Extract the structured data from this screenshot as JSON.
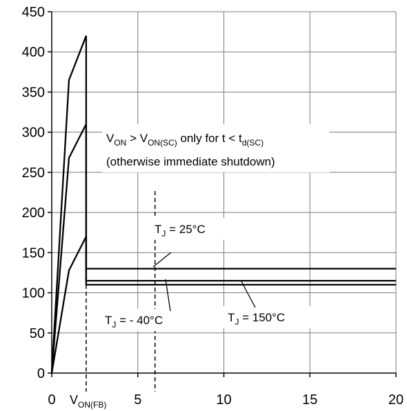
{
  "chart_data": {
    "type": "line",
    "title": "",
    "xlabel": "",
    "ylabel": "",
    "xlim": [
      0,
      20
    ],
    "ylim": [
      0,
      450
    ],
    "grid": true,
    "xticks": [
      0,
      5,
      10,
      15,
      20
    ],
    "yticks": [
      0,
      50,
      100,
      150,
      200,
      250,
      300,
      350,
      400,
      450
    ],
    "x_marker": {
      "value": 2,
      "label_main": "V",
      "label_sub": "ON(FB)"
    },
    "x_limit_line": {
      "value": 6
    },
    "series": [
      {
        "name": "T_J = - 40°C",
        "points": [
          [
            0,
            0
          ],
          [
            1,
            365
          ],
          [
            2,
            420
          ],
          [
            2,
            130
          ],
          [
            20,
            130
          ]
        ]
      },
      {
        "name": "T_J = 25°C",
        "points": [
          [
            0,
            0
          ],
          [
            1,
            268
          ],
          [
            2,
            310
          ],
          [
            2,
            115
          ],
          [
            20,
            115
          ]
        ]
      },
      {
        "name": "T_J = 150°C",
        "points": [
          [
            0,
            0
          ],
          [
            1,
            128
          ],
          [
            2,
            170
          ],
          [
            2,
            110
          ],
          [
            20,
            110
          ]
        ]
      }
    ],
    "annotations": {
      "condition": {
        "p1": "V",
        "p2": "ON",
        "p3": " > V",
        "p4": "ON(SC)",
        "p5": " only for t < t",
        "p6": "d(SC)",
        "line2": "(otherwise immediate shutdown)"
      },
      "labels": [
        {
          "main": "T",
          "sub": "J",
          "rest": " = 25°C"
        },
        {
          "main": "T",
          "sub": "J",
          "rest": " = - 40°C"
        },
        {
          "main": "T",
          "sub": "J",
          "rest": " = 150°C"
        }
      ]
    }
  }
}
